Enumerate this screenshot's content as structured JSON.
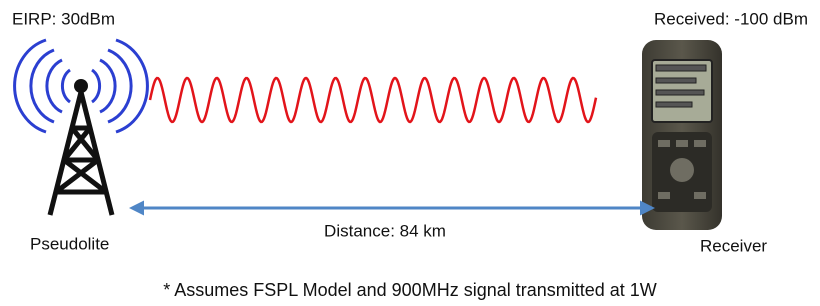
{
  "transmitter": {
    "label": "EIRP: 30dBm",
    "name": "Pseudolite"
  },
  "receiver": {
    "label": "Received: -100 dBm",
    "name": "Receiver"
  },
  "link": {
    "label": "Distance: 84 km"
  },
  "footnote": "* Assumes FSPL Model and 900MHz signal transmitted at 1W"
}
